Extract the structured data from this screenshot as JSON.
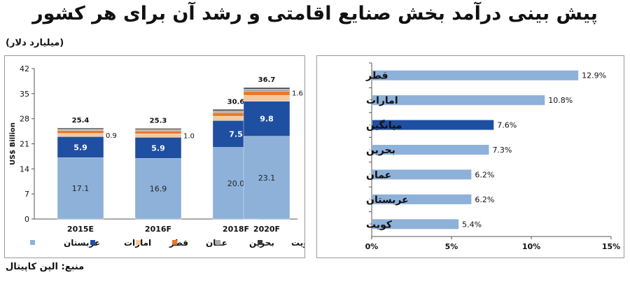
{
  "header": {
    "title": "پیش بینی درآمد بخش صنایع اقامتی و رشد آن برای هر کشور",
    "unit_note": "(میلیارد دلار)",
    "source": "منبع: الپن کاپیتال"
  },
  "colors": {
    "عربستان": "#8db1d9",
    "امارات": "#1f4fa0",
    "قطر": "#f6c89a",
    "عمان": "#e8782e",
    "بحرین": "#a9a9a9",
    "کویت": "#3a3a3a",
    "bar_default": "#8db1d9",
    "bar_highlight": "#1f4fa0"
  },
  "chart_data": [
    {
      "type": "bar",
      "stacked": true,
      "categories": [
        "2015E",
        "2016F",
        "2018F",
        "2020F"
      ],
      "ylabel": "US$ Billion",
      "ylim": [
        0,
        42
      ],
      "yticks": [
        0,
        7,
        14,
        21,
        28,
        35,
        42
      ],
      "grid": false,
      "legend_position": "bottom",
      "series": [
        {
          "name": "عربستان",
          "values": [
            17.1,
            16.9,
            20.0,
            23.1
          ],
          "labels": [
            "17.1",
            "16.9",
            "20.0",
            "23.1"
          ]
        },
        {
          "name": "امارات",
          "values": [
            5.9,
            5.9,
            7.5,
            9.8
          ],
          "labels": [
            "5.9",
            "5.9",
            "7.5",
            "9.8"
          ]
        },
        {
          "name": "قطر",
          "values": [
            0.9,
            1.0,
            1.2,
            1.6
          ],
          "labels": [
            "0.9",
            "1.0",
            "1.2",
            "1.6"
          ]
        },
        {
          "name": "عمان",
          "values": [
            0.8,
            0.8,
            1.0,
            1.2
          ]
        },
        {
          "name": "بحرین",
          "values": [
            0.4,
            0.4,
            0.5,
            0.6
          ]
        },
        {
          "name": "کویت",
          "values": [
            0.3,
            0.3,
            0.4,
            0.4
          ]
        }
      ],
      "totals": [
        "25.4",
        "25.3",
        "30.6",
        "36.7"
      ]
    },
    {
      "type": "bar",
      "orientation": "horizontal",
      "categories": [
        "قطر",
        "امارات",
        "میانگین",
        "بحرین",
        "عمان",
        "عربستان",
        "کویت"
      ],
      "values": [
        12.9,
        10.8,
        7.6,
        7.3,
        6.2,
        6.2,
        5.4
      ],
      "labels": [
        "12.9%",
        "10.8%",
        "7.6%",
        "7.3%",
        "6.2%",
        "6.2%",
        "5.4%"
      ],
      "highlight": "میانگین",
      "xlim": [
        0,
        15
      ],
      "xticks": [
        0,
        5,
        10,
        15
      ],
      "xtick_labels": [
        "0%",
        "5%",
        "10%",
        "15%"
      ],
      "grid": false
    }
  ]
}
